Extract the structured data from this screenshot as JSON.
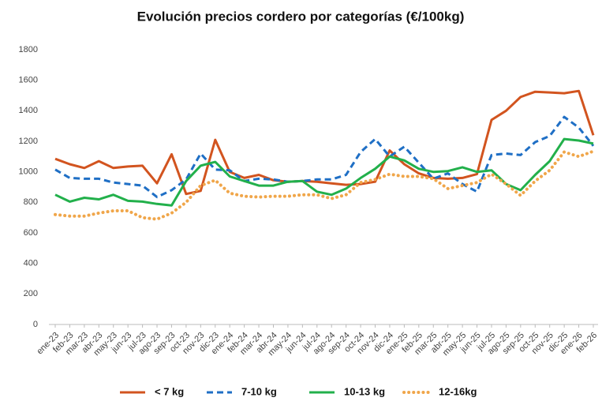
{
  "chart_data": {
    "type": "line",
    "title": "Evolución precios cordero por categorías (€/100kg)",
    "categories": [
      "ene-23",
      "feb-23",
      "mar-23",
      "abr-23",
      "may-23",
      "jun-23",
      "jul-23",
      "ago-23",
      "sep-23",
      "oct-23",
      "nov-23",
      "dic-23",
      "ene-24",
      "feb-24",
      "mar-24",
      "abr-24",
      "may-24",
      "jun-24",
      "jul-24",
      "ago-24",
      "sep-24",
      "oct-24",
      "nov-24",
      "dic-24",
      "ene-25",
      "feb-25",
      "mar-25",
      "abr-25",
      "may-25",
      "jun-25",
      "jul-25",
      "ago-25",
      "sep-25",
      "oct-25",
      "nov-25",
      "dic-25",
      "ene-26",
      "feb-26"
    ],
    "series": [
      {
        "name": "< 7 kg",
        "color": "#d2541f",
        "dash": "solid",
        "values": [
          1085,
          1050,
          1025,
          1070,
          1025,
          1035,
          1040,
          925,
          1115,
          855,
          875,
          1210,
          1000,
          960,
          980,
          945,
          935,
          940,
          935,
          925,
          915,
          920,
          935,
          1140,
          1050,
          990,
          960,
          955,
          960,
          985,
          1340,
          1400,
          1490,
          1525,
          1520,
          1515,
          1530,
          1240
        ]
      },
      {
        "name": "7-10 kg",
        "color": "#1f6fc5",
        "dash": "dashed",
        "values": [
          1015,
          960,
          955,
          955,
          930,
          920,
          910,
          835,
          880,
          950,
          1120,
          1015,
          1010,
          940,
          955,
          950,
          935,
          940,
          950,
          950,
          980,
          1130,
          1215,
          1100,
          1165,
          1060,
          955,
          990,
          920,
          870,
          1110,
          1120,
          1110,
          1195,
          1235,
          1360,
          1290,
          1170
        ]
      },
      {
        "name": "10-13 kg",
        "color": "#22b04b",
        "dash": "solid",
        "values": [
          850,
          805,
          830,
          820,
          850,
          810,
          805,
          790,
          780,
          940,
          1040,
          1065,
          970,
          940,
          910,
          910,
          935,
          940,
          870,
          850,
          890,
          960,
          1020,
          1100,
          1075,
          1020,
          1000,
          1005,
          1030,
          1000,
          1010,
          920,
          880,
          980,
          1070,
          1215,
          1205,
          1185
        ]
      },
      {
        "name": "12-16kg",
        "color": "#f0a64a",
        "dash": "dotted",
        "values": [
          720,
          710,
          710,
          730,
          745,
          745,
          700,
          690,
          730,
          800,
          910,
          945,
          860,
          840,
          835,
          840,
          840,
          850,
          850,
          825,
          850,
          930,
          950,
          985,
          970,
          970,
          955,
          890,
          910,
          930,
          985,
          920,
          845,
          940,
          1010,
          1130,
          1100,
          1135
        ]
      }
    ],
    "ylim": [
      0,
      1800
    ],
    "yticks": [
      0,
      200,
      400,
      600,
      800,
      1000,
      1200,
      1400,
      1600,
      1800
    ],
    "grid": false,
    "legend": "bottom"
  }
}
